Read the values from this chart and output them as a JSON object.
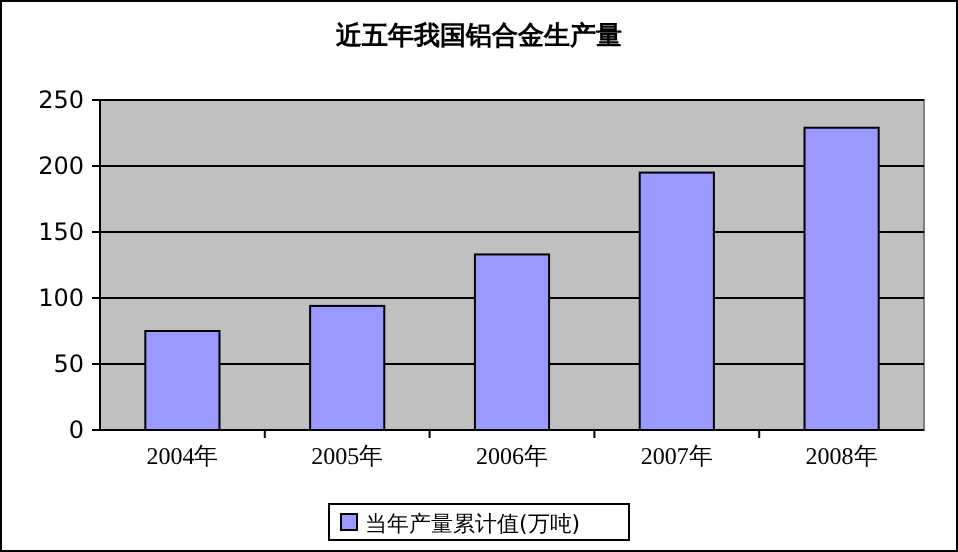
{
  "chart_data": {
    "type": "bar",
    "title": "近五年我国铝合金生产量",
    "categories": [
      "2004年",
      "2005年",
      "2006年",
      "2007年",
      "2008年"
    ],
    "series": [
      {
        "name": "当年产量累计值(万吨)",
        "color": "#9999ff",
        "values": [
          75,
          94,
          133,
          195,
          229
        ]
      }
    ],
    "ylim": [
      0,
      250
    ],
    "yticks": [
      0,
      50,
      100,
      150,
      200,
      250
    ],
    "grid": "y",
    "legend": "bottom"
  }
}
